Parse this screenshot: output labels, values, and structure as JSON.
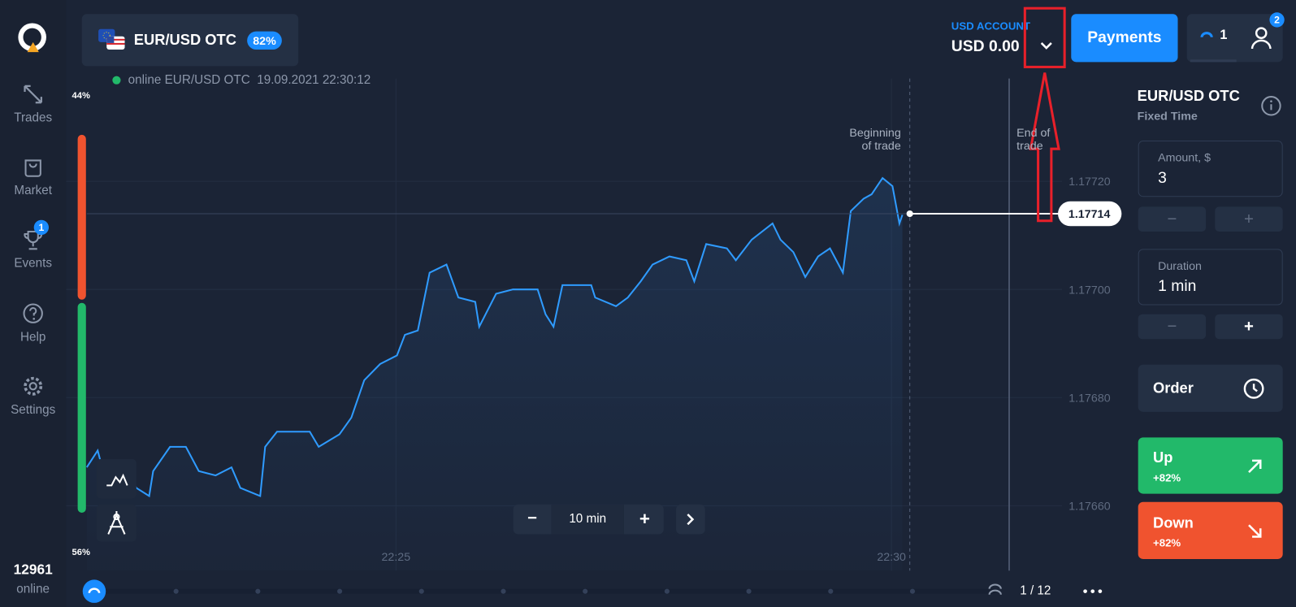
{
  "sidebar": {
    "nav": [
      {
        "label": "Trades"
      },
      {
        "label": "Market"
      },
      {
        "label": "Events",
        "badge": "1"
      },
      {
        "label": "Help"
      },
      {
        "label": "Settings"
      }
    ],
    "online_count": "12961",
    "online_label": "online"
  },
  "header": {
    "asset": "EUR/USD OTC",
    "payout": "82%",
    "account_label": "USD ACCOUNT",
    "balance": "USD 0.00",
    "payments": "Payments",
    "open_trades": "1",
    "profile_badge": "2"
  },
  "chart_data": {
    "type": "line",
    "status": "online EUR/USD OTC  19.09.2021 22:30:12",
    "sentiment": {
      "values": [
        44,
        56
      ],
      "value_labels": [
        "44%",
        "56%"
      ],
      "colors": [
        "#f0532f",
        "#22b96a"
      ]
    },
    "begin_label": [
      "Beginning",
      "of trade"
    ],
    "end_label": [
      "End of",
      "trade"
    ],
    "current_price": 1.17714,
    "xlim": [
      21.88,
      31.68
    ],
    "xticks": [
      {
        "value": 25,
        "label": "22:25"
      },
      {
        "value": 30,
        "label": "22:30"
      }
    ],
    "ylim": [
      1.17648,
      1.17739
    ],
    "yticks": [
      {
        "value": 1.1772,
        "label": "1.17720"
      },
      {
        "value": 1.177,
        "label": "1.17700"
      },
      {
        "value": 1.1768,
        "label": "1.17680"
      },
      {
        "value": 1.1766,
        "label": "1.17660"
      }
    ],
    "grid": true,
    "series": [
      {
        "color": "#2f9bff",
        "x": [
          21.88,
          21.99,
          22.09,
          22.26,
          22.38,
          22.51,
          22.55,
          22.72,
          22.88,
          23.01,
          23.18,
          23.34,
          23.43,
          23.63,
          23.68,
          23.8,
          24.13,
          24.22,
          24.43,
          24.55,
          24.68,
          24.84,
          25.01,
          25.09,
          25.22,
          25.34,
          25.51,
          25.63,
          25.8,
          25.84,
          26.01,
          26.18,
          26.43,
          26.51,
          26.59,
          26.68,
          26.97,
          27.01,
          27.22,
          27.34,
          27.47,
          27.59,
          27.76,
          27.93,
          28.01,
          28.13,
          28.34,
          28.43,
          28.59,
          28.8,
          28.88,
          29.01,
          29.13,
          29.26,
          29.38,
          29.51,
          29.59,
          29.72,
          29.8,
          29.91,
          30.01,
          30.08,
          30.11
        ],
        "values": [
          1.176671,
          1.176702,
          1.176633,
          1.176671,
          1.176633,
          1.176618,
          1.176664,
          1.176709,
          1.176709,
          1.176664,
          1.176656,
          1.176671,
          1.176633,
          1.176618,
          1.176709,
          1.176737,
          1.176737,
          1.176709,
          1.176732,
          1.176763,
          1.176832,
          1.176862,
          1.176878,
          1.176916,
          1.176924,
          1.177031,
          1.177046,
          1.176985,
          1.176977,
          1.176931,
          1.176992,
          1.177,
          1.177,
          1.176954,
          1.176931,
          1.177008,
          1.177008,
          1.176985,
          1.176969,
          1.176985,
          1.177015,
          1.177046,
          1.177061,
          1.177054,
          1.177015,
          1.177084,
          1.177076,
          1.177054,
          1.177092,
          1.177122,
          1.177092,
          1.177069,
          1.177023,
          1.177061,
          1.177076,
          1.177031,
          1.177145,
          1.177168,
          1.177176,
          1.177206,
          1.177191,
          1.177122,
          1.177138
        ]
      }
    ],
    "timeframe": "10 min",
    "pager": "1 / 12"
  },
  "panel": {
    "asset": "EUR/USD OTC",
    "mode": "Fixed Time",
    "amount_label": "Amount, $",
    "amount": "3",
    "duration_label": "Duration",
    "duration": "1 min",
    "order": "Order",
    "up": "Up",
    "up_payout": "+82%",
    "down": "Down",
    "down_payout": "+82%"
  }
}
